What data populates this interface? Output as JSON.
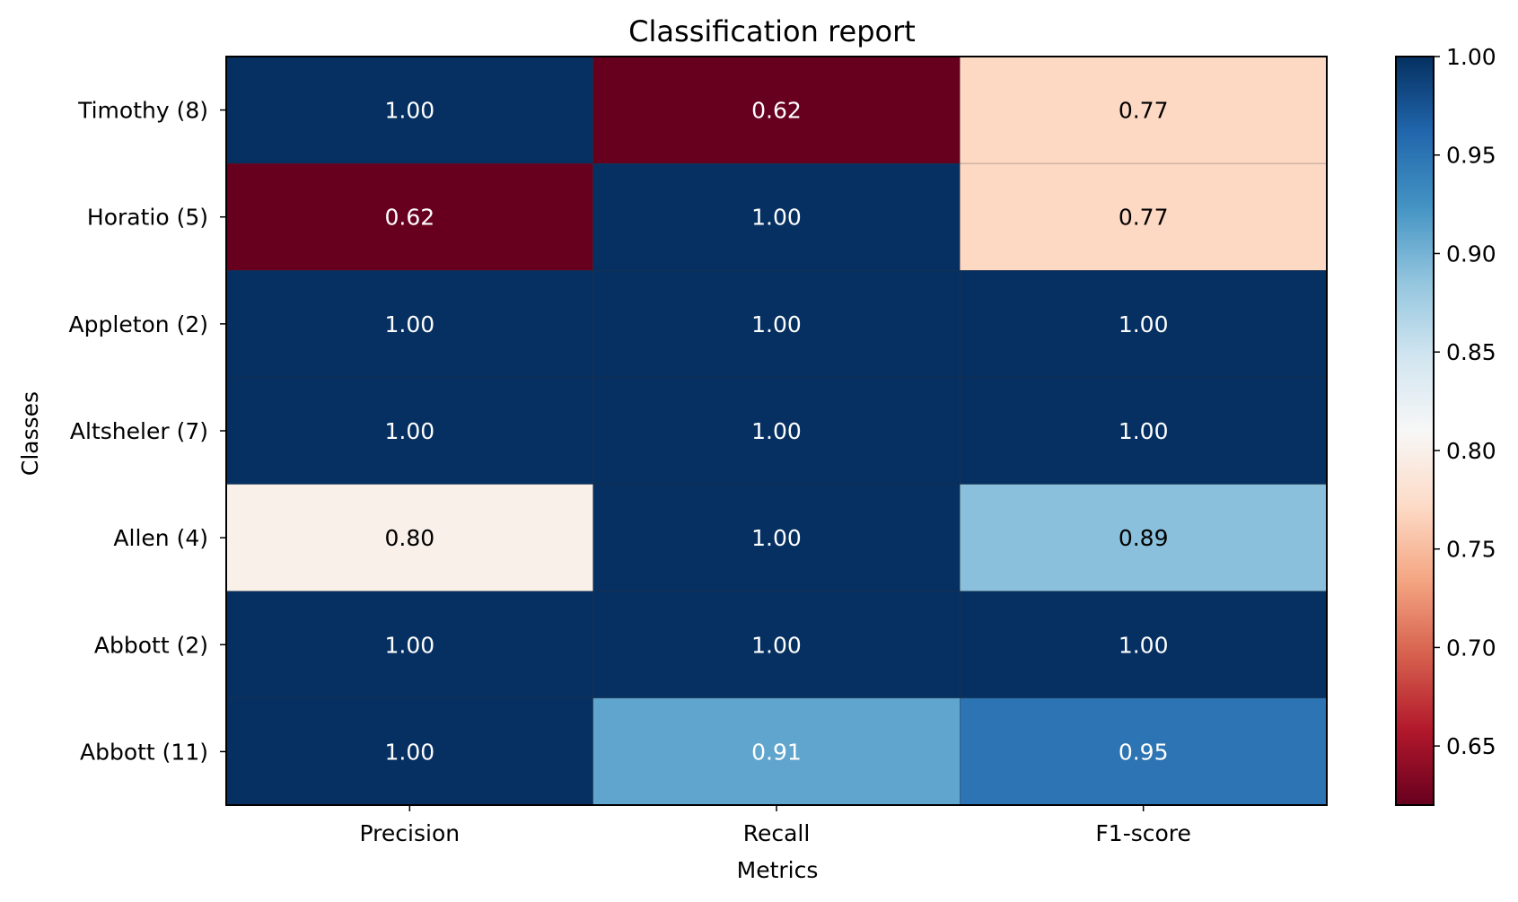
{
  "chart_data": {
    "type": "heatmap",
    "title": "Classification report",
    "xlabel": "Metrics",
    "ylabel": "Classes",
    "x_categories": [
      "Precision",
      "Recall",
      "F1-score"
    ],
    "y_categories": [
      "Timothy (8)",
      "Horatio (5)",
      "Appleton (2)",
      "Altsheler (7)",
      "Allen (4)",
      "Abbott (2)",
      "Abbott (11)"
    ],
    "values": [
      [
        1.0,
        0.62,
        0.77
      ],
      [
        0.62,
        1.0,
        0.77
      ],
      [
        1.0,
        1.0,
        1.0
      ],
      [
        1.0,
        1.0,
        1.0
      ],
      [
        0.8,
        1.0,
        0.89
      ],
      [
        1.0,
        1.0,
        1.0
      ],
      [
        1.0,
        0.91,
        0.95
      ]
    ],
    "value_format": "0.00",
    "colormap": "RdBu",
    "colorbar": {
      "range": [
        0.62,
        1.0
      ],
      "ticks": [
        0.65,
        0.7,
        0.75,
        0.8,
        0.85,
        0.9,
        0.95,
        1.0
      ]
    },
    "legend": "colorbar-right",
    "grid": false
  }
}
